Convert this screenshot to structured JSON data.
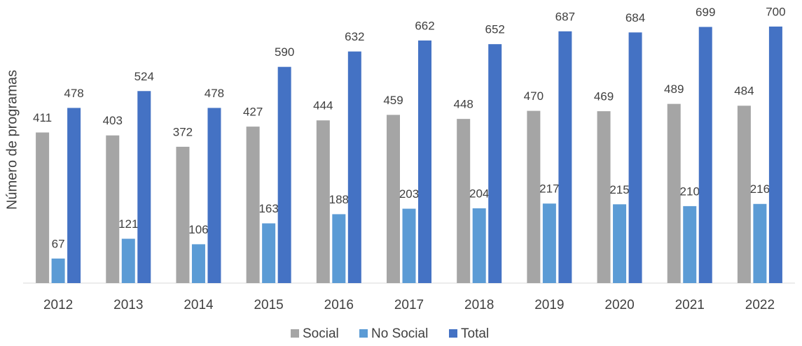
{
  "chart_data": {
    "type": "bar",
    "y_label": "Número de programas",
    "categories": [
      "2012",
      "2013",
      "2014",
      "2015",
      "2016",
      "2017",
      "2018",
      "2019",
      "2020",
      "2021",
      "2022"
    ],
    "series": [
      {
        "name": "Social",
        "color": "#a5a5a5",
        "values": [
          411,
          403,
          372,
          427,
          444,
          459,
          448,
          470,
          469,
          489,
          484
        ]
      },
      {
        "name": "No Social",
        "color": "#5b9bd5",
        "values": [
          67,
          121,
          106,
          163,
          188,
          203,
          204,
          217,
          215,
          210,
          216
        ]
      },
      {
        "name": "Total",
        "color": "#4472c4",
        "values": [
          478,
          524,
          478,
          590,
          632,
          662,
          652,
          687,
          684,
          699,
          700
        ]
      }
    ]
  }
}
